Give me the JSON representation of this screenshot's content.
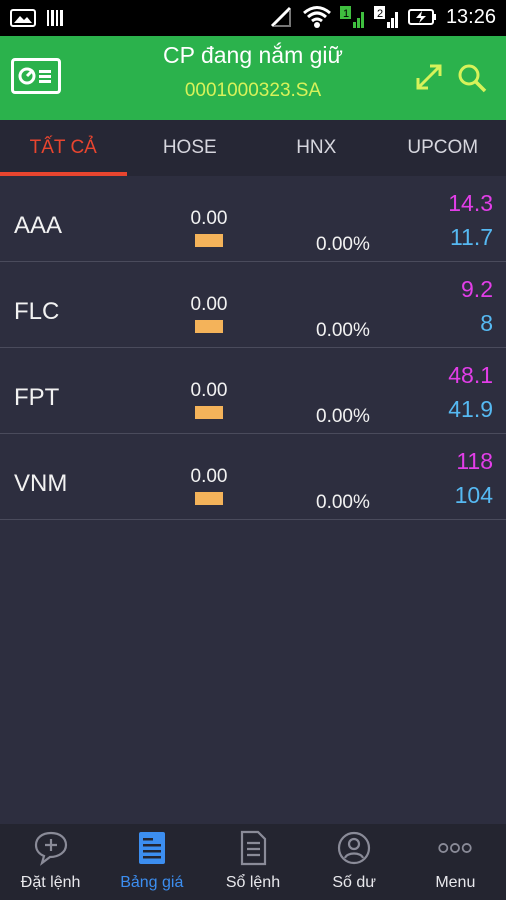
{
  "status_bar": {
    "time": "13:26",
    "sim1": "1",
    "sim2": "2"
  },
  "header": {
    "title": "CP đang nắm giữ",
    "account": "0001000323.SA"
  },
  "tabs": [
    {
      "label": "TẤT CẢ",
      "active": true
    },
    {
      "label": "HOSE",
      "active": false
    },
    {
      "label": "HNX",
      "active": false
    },
    {
      "label": "UPCOM",
      "active": false
    }
  ],
  "holdings": [
    {
      "symbol": "AAA",
      "change": "0.00",
      "percent": "0.00%",
      "high": "14.3",
      "low": "11.7"
    },
    {
      "symbol": "FLC",
      "change": "0.00",
      "percent": "0.00%",
      "high": "9.2",
      "low": "8"
    },
    {
      "symbol": "FPT",
      "change": "0.00",
      "percent": "0.00%",
      "high": "48.1",
      "low": "41.9"
    },
    {
      "symbol": "VNM",
      "change": "0.00",
      "percent": "0.00%",
      "high": "118",
      "low": "104"
    }
  ],
  "bottom_nav": [
    {
      "label": "Đặt lệnh",
      "icon": "chat-plus-icon",
      "active": false
    },
    {
      "label": "Bảng giá",
      "icon": "price-board-icon",
      "active": true
    },
    {
      "label": "Sổ lệnh",
      "icon": "document-icon",
      "active": false
    },
    {
      "label": "Số dư",
      "icon": "user-circle-icon",
      "active": false
    },
    {
      "label": "Menu",
      "icon": "more-dots-icon",
      "active": false
    }
  ],
  "colors": {
    "header_bg": "#2bb24c",
    "account_text": "#d7f25a",
    "tab_active": "#e8452f",
    "high_price": "#e23ee8",
    "low_price": "#56b9f2",
    "change_bar": "#f4b35a",
    "nav_active": "#3c8ef0"
  }
}
